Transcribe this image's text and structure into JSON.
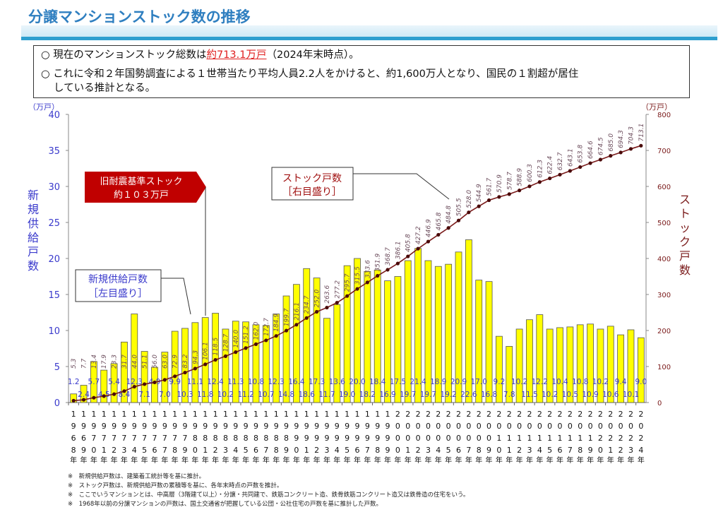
{
  "header": {
    "title": "分譲マンションストック数の推移"
  },
  "summary": {
    "line1_pre": "○ 現在のマンションストック総数は",
    "line1_highlight": "約713.1万戸",
    "line1_post": "（2024年末時点）。",
    "line2": "○ これに令和２年国勢調査による１世帯当たり平均人員2.2人をかけると、約1,600万人となり、国民の１割超が居住",
    "line3": "している推計となる。"
  },
  "chart_data": {
    "type": "bar+line",
    "left_unit": "（万戸）",
    "right_unit": "（万戸）",
    "ylabel_left": "新規供給戸数",
    "ylabel_right": "ストック戸数",
    "ylim_left": [
      0,
      40
    ],
    "ylim_right": [
      0,
      800
    ],
    "yticks_left": [
      0,
      5,
      10,
      15,
      20,
      25,
      30,
      35,
      40
    ],
    "yticks_right": [
      0,
      100,
      200,
      300,
      400,
      500,
      600,
      700,
      800
    ],
    "years": [
      1968,
      1969,
      1970,
      1971,
      1972,
      1973,
      1974,
      1975,
      1976,
      1977,
      1978,
      1979,
      1980,
      1981,
      1982,
      1983,
      1984,
      1985,
      1986,
      1987,
      1988,
      1989,
      1990,
      1991,
      1992,
      1993,
      1994,
      1995,
      1996,
      1997,
      1998,
      1999,
      2000,
      2001,
      2002,
      2003,
      2004,
      2005,
      2006,
      2007,
      2008,
      2009,
      2010,
      2011,
      2012,
      2013,
      2014,
      2015,
      2016,
      2017,
      2018,
      2019,
      2020,
      2021,
      2022,
      2023,
      2024
    ],
    "year_suffix": "年",
    "series": [
      {
        "name": "新規供給戸数",
        "axis": "left",
        "type": "bar",
        "color": "#ffff00",
        "values": [
          1.2,
          2.4,
          5.7,
          4.5,
          5.4,
          8.4,
          12.3,
          7.1,
          4.9,
          7.0,
          9.9,
          10.3,
          11.1,
          11.8,
          12.4,
          10.2,
          11.3,
          11.2,
          10.8,
          10.7,
          12.3,
          14.8,
          16.4,
          18.6,
          17.3,
          11.7,
          13.6,
          19.0,
          20.0,
          18.2,
          18.4,
          16.9,
          17.5,
          19.7,
          21.4,
          19.7,
          18.9,
          19.2,
          20.9,
          22.6,
          17.0,
          16.8,
          9.2,
          7.8,
          10.2,
          11.5,
          12.2,
          10.2,
          10.4,
          10.5,
          10.8,
          10.9,
          10.2,
          10.6,
          9.4,
          10.1,
          9.0
        ]
      },
      {
        "name": "ストック戸数",
        "axis": "right",
        "type": "line",
        "color": "#7a1a1a",
        "values": [
          5.3,
          7.7,
          13.4,
          17.9,
          23.3,
          31.7,
          44.0,
          51.1,
          56.0,
          63.0,
          72.9,
          83.2,
          94.3,
          106.1,
          118.5,
          128.7,
          140.0,
          151.2,
          162.0,
          172.7,
          184.9,
          199.7,
          216.1,
          234.7,
          252.0,
          263.6,
          277.2,
          295.7,
          315.5,
          333.6,
          351.9,
          368.7,
          386.1,
          405.8,
          427.2,
          446.9,
          465.8,
          484.8,
          505.5,
          528.0,
          544.9,
          561.7,
          570.9,
          578.7,
          588.9,
          600.3,
          612.3,
          622.4,
          632.7,
          643.1,
          653.8,
          664.6,
          674.5,
          685.0,
          694.3,
          704.3,
          713.1
        ]
      }
    ],
    "annotations": {
      "old_standard_line1": "旧耐震基準ストック",
      "old_standard_line2": "約１０３万戸",
      "supply_label_line1": "新規供給戸数",
      "supply_label_line2": "［左目盛り］",
      "stock_label_line1": "ストック戸数",
      "stock_label_line2": "［右目盛り］"
    }
  },
  "footnotes": [
    "※　新規供給戸数は、建築着工統計等を基に推計。",
    "※　ストック戸数は、新規供給戸数の累積等を基に、各年末時点の戸数を推計。",
    "※　ここでいうマンションとは、中高層（3階建て以上）・分譲・共同建で、鉄筋コンクリート造、鉄骨鉄筋コンクリート造又は鉄骨造の住宅をいう。",
    "※　1968年以前の分譲マンションの戸数は、国土交通省が把握している公団・公社住宅の戸数を基に推計した戸数。"
  ]
}
